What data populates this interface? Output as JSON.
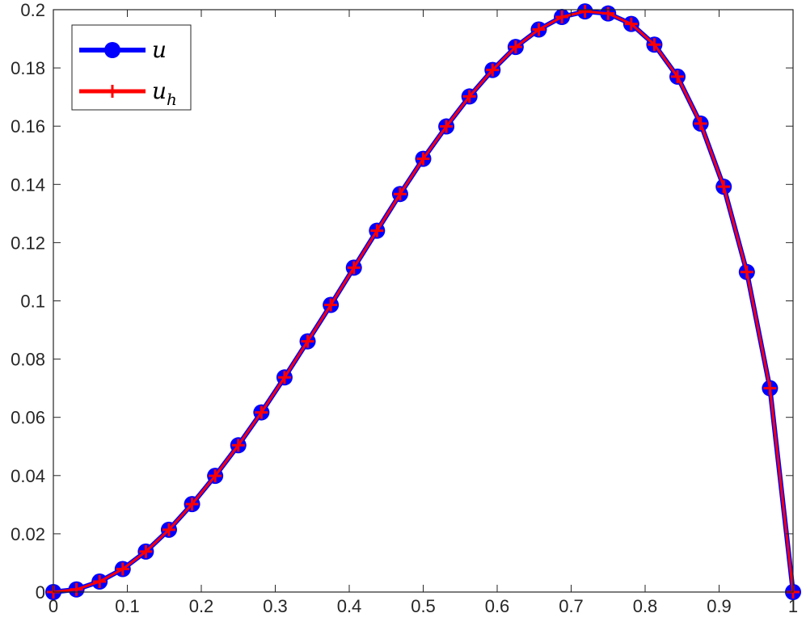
{
  "chart_data": {
    "type": "line",
    "title": "",
    "xlabel": "",
    "ylabel": "",
    "xlim": [
      0,
      1
    ],
    "ylim": [
      0,
      0.2
    ],
    "grid": false,
    "legend_position": "top-left",
    "x_ticks": [
      "0",
      "0.1",
      "0.2",
      "0.3",
      "0.4",
      "0.5",
      "0.6",
      "0.7",
      "0.8",
      "0.9",
      "1"
    ],
    "y_ticks": [
      "0",
      "0.02",
      "0.04",
      "0.06",
      "0.08",
      "0.1",
      "0.12",
      "0.14",
      "0.16",
      "0.18",
      "0.2"
    ],
    "x": [
      0,
      0.03125,
      0.0625,
      0.09375,
      0.125,
      0.15625,
      0.1875,
      0.21875,
      0.25,
      0.28125,
      0.3125,
      0.34375,
      0.375,
      0.40625,
      0.4375,
      0.46875,
      0.5,
      0.53125,
      0.5625,
      0.59375,
      0.625,
      0.65625,
      0.6875,
      0.71875,
      0.75,
      0.78125,
      0.8125,
      0.84375,
      0.875,
      0.90625,
      0.9375,
      0.96875,
      1
    ],
    "series": [
      {
        "name": "u",
        "base": "u",
        "sub": "",
        "color": "#0000ff",
        "marker": "circle",
        "values": [
          0,
          0.0009,
          0.0036,
          0.0079,
          0.0139,
          0.0214,
          0.0302,
          0.0399,
          0.0504,
          0.0617,
          0.0737,
          0.0861,
          0.0986,
          0.1114,
          0.1241,
          0.1367,
          0.1488,
          0.1599,
          0.1702,
          0.1793,
          0.1872,
          0.1932,
          0.1975,
          0.1994,
          0.1987,
          0.1951,
          0.188,
          0.177,
          0.1609,
          0.1392,
          0.1099,
          0.07,
          0
        ]
      },
      {
        "name": "u_h",
        "base": "u",
        "sub": "h",
        "color": "#ff0000",
        "marker": "plus",
        "values": [
          0,
          0.0009,
          0.0036,
          0.0079,
          0.0139,
          0.0214,
          0.0302,
          0.0399,
          0.0504,
          0.0617,
          0.0737,
          0.0861,
          0.0986,
          0.1114,
          0.1241,
          0.1367,
          0.1488,
          0.1599,
          0.1702,
          0.1793,
          0.1872,
          0.1932,
          0.1975,
          0.1994,
          0.1987,
          0.1951,
          0.188,
          0.177,
          0.1609,
          0.1392,
          0.1099,
          0.07,
          0
        ]
      }
    ]
  }
}
